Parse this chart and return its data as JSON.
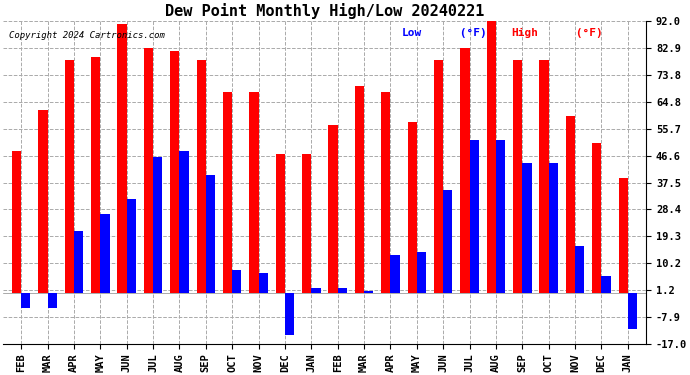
{
  "title": "Dew Point Monthly High/Low 20240221",
  "copyright": "Copyright 2024 Cartronics.com",
  "ylabel_right_ticks": [
    92.0,
    82.9,
    73.8,
    64.8,
    55.7,
    46.6,
    37.5,
    28.4,
    19.3,
    10.2,
    1.2,
    -7.9,
    -17.0
  ],
  "categories": [
    "FEB",
    "MAR",
    "APR",
    "MAY",
    "JUN",
    "JUL",
    "AUG",
    "SEP",
    "OCT",
    "NOV",
    "DEC",
    "JAN",
    "FEB",
    "MAR",
    "APR",
    "MAY",
    "JUN",
    "JUL",
    "AUG",
    "SEP",
    "OCT",
    "NOV",
    "DEC",
    "JAN"
  ],
  "high_values": [
    48.0,
    62.0,
    79.0,
    80.0,
    91.0,
    83.0,
    82.0,
    79.0,
    68.0,
    68.0,
    47.0,
    47.0,
    57.0,
    70.0,
    68.0,
    58.0,
    79.0,
    83.0,
    93.0,
    79.0,
    79.0,
    60.0,
    51.0,
    39.0
  ],
  "low_values": [
    -5.0,
    -5.0,
    21.0,
    27.0,
    32.0,
    46.0,
    48.0,
    40.0,
    8.0,
    7.0,
    -14.0,
    2.0,
    2.0,
    1.0,
    13.0,
    14.0,
    35.0,
    52.0,
    52.0,
    44.0,
    44.0,
    16.0,
    6.0,
    -12.0
  ],
  "high_color": "#ff0000",
  "low_color": "#0000ff",
  "bg_color": "#ffffff",
  "grid_color": "#aaaaaa",
  "title_fontsize": 11,
  "tick_fontsize": 7.5,
  "ymin": -17.0,
  "ymax": 92.0
}
